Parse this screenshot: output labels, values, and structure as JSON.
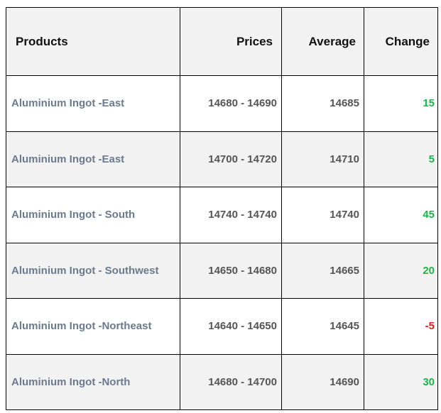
{
  "table": {
    "headers": {
      "products": "Products",
      "prices": "Prices",
      "average": "Average",
      "change": "Change"
    },
    "rows": [
      {
        "product": "Aluminium Ingot -East",
        "prices": "14680 - 14690",
        "average": "14685",
        "change": "15"
      },
      {
        "product": "Aluminium Ingot -East",
        "prices": "14700 - 14720",
        "average": "14710",
        "change": "5"
      },
      {
        "product": "Aluminium Ingot - South",
        "prices": "14740 - 14740",
        "average": "14740",
        "change": "45"
      },
      {
        "product": "Aluminium Ingot - Southwest",
        "prices": "14650 - 14680",
        "average": "14665",
        "change": "20"
      },
      {
        "product": "Aluminium Ingot -Northeast",
        "prices": "14640 - 14650",
        "average": "14645",
        "change": "-5"
      },
      {
        "product": "Aluminium Ingot -North",
        "prices": "14680 - 14700",
        "average": "14690",
        "change": "30"
      }
    ]
  },
  "colors": {
    "positive_change": "#1fb34a",
    "negative_change": "#e01b1b",
    "product_text": "#6b7a8c",
    "alt_row_bg": "#f2f2f2"
  }
}
